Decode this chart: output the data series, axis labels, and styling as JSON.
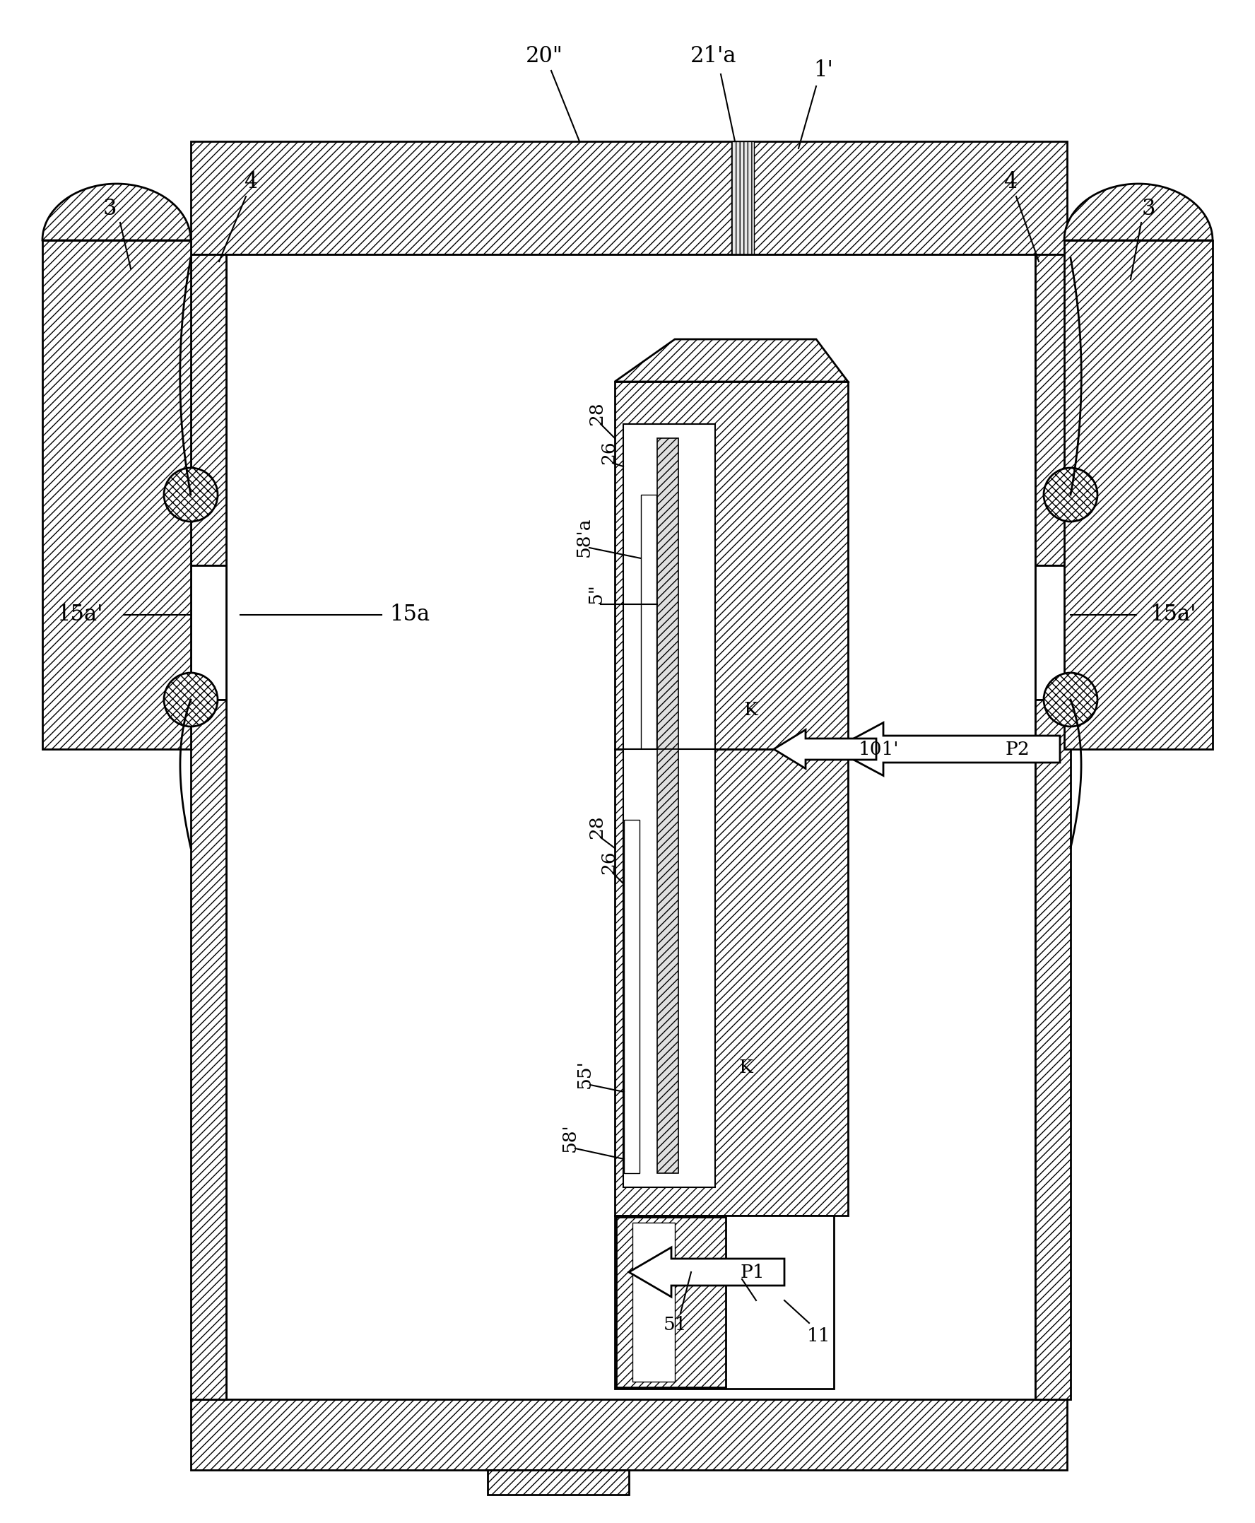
{
  "bg": "#ffffff",
  "lc": "#000000",
  "fw": 17.76,
  "fh": 21.55,
  "dpi": 100,
  "lw": 2.0,
  "lw2": 1.5,
  "fs": 22,
  "fs2": 19,
  "labels": {
    "20pp": "20\"",
    "21a": "21'a",
    "1p": "1'",
    "3": "3",
    "4": "4",
    "15ap": "15a'",
    "15a": "15a",
    "28u": "28",
    "26u": "26",
    "58au": "58'a",
    "5pp": "5\"",
    "Ku": "K",
    "101p": "101'",
    "P2": "P2",
    "28l": "28",
    "26l": "26",
    "55p": "55'",
    "58p": "58'",
    "Kl": "K",
    "P1": "P1",
    "51": "51",
    "11": "11"
  }
}
